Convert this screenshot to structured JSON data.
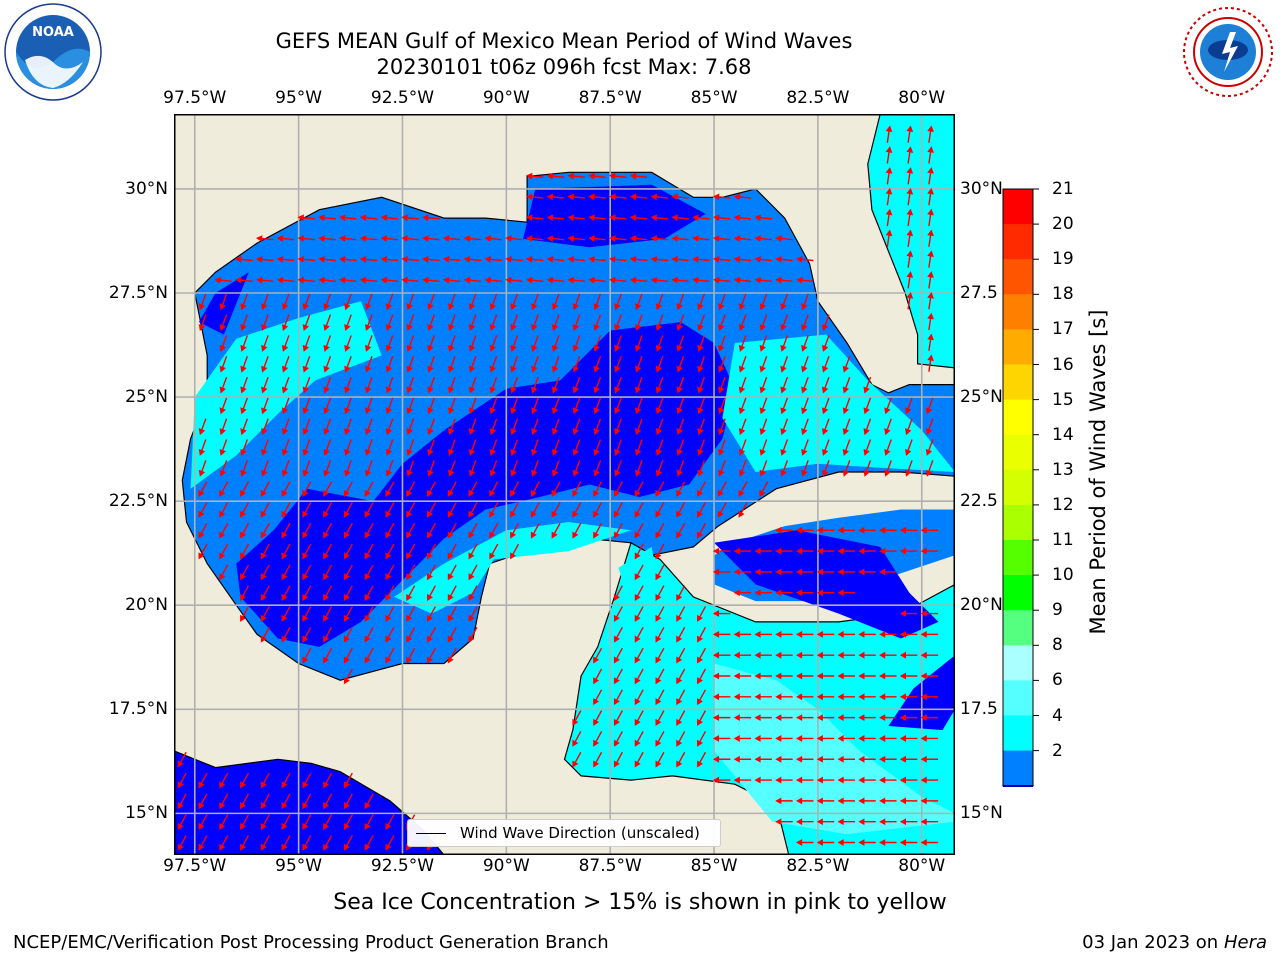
{
  "title": {
    "line1": "GEFS MEAN Gulf of Mexico Mean Period of Wind Waves",
    "line2": "20230101 t06z 096h fcst   Max: 7.68"
  },
  "map": {
    "lon_ticks": [
      "97.5°W",
      "95°W",
      "92.5°W",
      "90°W",
      "87.5°W",
      "85°W",
      "82.5°W",
      "80°W"
    ],
    "lat_ticks": [
      "30°N",
      "27.5°N",
      "25°N",
      "22.5°N",
      "20°N",
      "17.5°N",
      "15°N"
    ],
    "lat_ticks_right": [
      "30°N",
      "27.5",
      "25°N",
      "22.5",
      "20°N",
      "17.5",
      "15°N"
    ],
    "extent": {
      "lon": [
        -98,
        -79.2
      ],
      "lat": [
        14,
        31.8
      ]
    },
    "land_color": "#efecdc",
    "vector_color": "#ff0000",
    "legend_label": "Wind Wave Direction (unscaled)"
  },
  "colorbar": {
    "title": "Mean Period of Wind Waves [s]",
    "labels": [
      "21",
      "20",
      "19",
      "18",
      "17",
      "16",
      "15",
      "14",
      "13",
      "12",
      "11",
      "10",
      "9",
      "8",
      "6",
      "4",
      "2"
    ],
    "colors": [
      "#ff0000",
      "#ff2a00",
      "#ff5500",
      "#ff8000",
      "#ffab00",
      "#ffd500",
      "#ffff00",
      "#eaff00",
      "#d4ff00",
      "#aaff00",
      "#55ff00",
      "#00ff00",
      "#55ff7f",
      "#aaffff",
      "#55ffff",
      "#00ffff",
      "#0080ff"
    ],
    "under_color": "#0000ff"
  },
  "note": "Sea Ice Concentration > 15% is shown in pink to yellow",
  "footer": {
    "left": "NCEP/EMC/Verification Post Processing Product Generation Branch",
    "date": "03 Jan 2023 on ",
    "machine": "Hera"
  },
  "logos": {
    "noaa": "NOAA",
    "nws_text": "NATIONAL WEATHER SERVICE"
  }
}
